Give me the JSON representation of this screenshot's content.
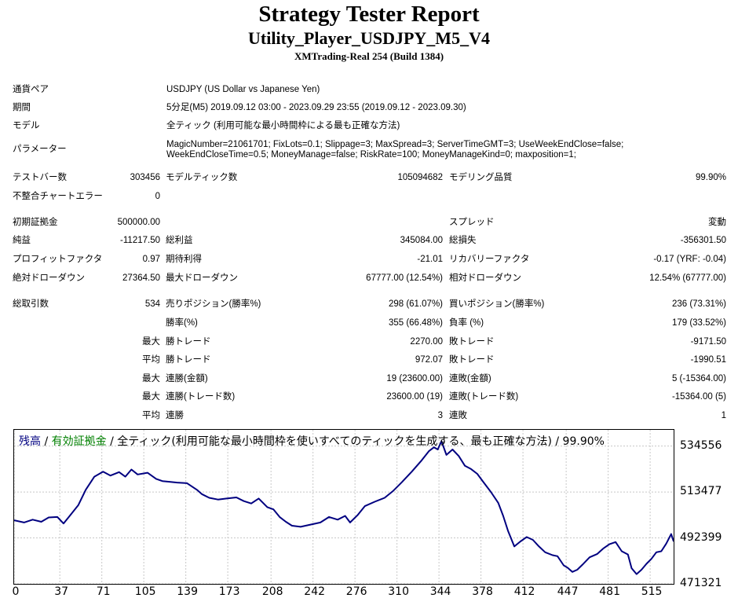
{
  "header": {
    "title": "Strategy Tester Report",
    "subtitle": "Utility_Player_USDJPY_M5_V4",
    "server": "XMTrading-Real 254 (Build 1384)"
  },
  "info": {
    "symbol_label": "通貨ペア",
    "symbol": "USDJPY (US Dollar vs Japanese Yen)",
    "period_label": "期間",
    "period": "5分足(M5) 2019.09.12 03:00 - 2023.09.29 23:55 (2019.09.12 - 2023.09.30)",
    "model_label": "モデル",
    "model": "全ティック (利用可能な最小時間枠による最も正確な方法)",
    "params_label": "パラメーター",
    "params_line1": "MagicNumber=21061701; FixLots=0.1; Slippage=3; MaxSpread=3; ServerTimeGMT=3; UseWeekEndClose=false;",
    "params_line2": "WeekEndCloseTime=0.5; MoneyManage=false; RiskRate=100; MoneyManageKind=0; maxposition=1;"
  },
  "stats": {
    "bars_label": "テストバー数",
    "bars": "303456",
    "ticks_label": "モデルティック数",
    "ticks": "105094682",
    "quality_label": "モデリング品質",
    "quality": "99.90%",
    "mismatch_label": "不整合チャートエラー",
    "mismatch": "0",
    "deposit_label": "初期証拠金",
    "deposit": "500000.00",
    "spread_label": "スプレッド",
    "spread": "変動",
    "net_label": "純益",
    "net": "-11217.50",
    "gross_profit_label": "総利益",
    "gross_profit": "345084.00",
    "gross_loss_label": "総損失",
    "gross_loss": "-356301.50",
    "pf_label": "プロフィットファクタ",
    "pf": "0.97",
    "expected_label": "期待利得",
    "expected": "-21.01",
    "recovery_label": "リカバリーファクタ",
    "recovery": "-0.17 (YRF: -0.04)",
    "abs_dd_label": "絶対ドローダウン",
    "abs_dd": "27364.50",
    "max_dd_label": "最大ドローダウン",
    "max_dd": "67777.00 (12.54%)",
    "rel_dd_label": "相対ドローダウン",
    "rel_dd": "12.54% (67777.00)",
    "trades_label": "総取引数",
    "trades": "534",
    "short_label": "売りポジション(勝率%)",
    "short": "298 (61.07%)",
    "long_label": "買いポジション(勝率%)",
    "long": "236 (73.31%)",
    "winrate_label": "勝率(%)",
    "winrate": "355 (66.48%)",
    "lossrate_label": "負率 (%)",
    "lossrate": "179 (33.52%)",
    "largest_prefix": "最大",
    "largest_win_label": "勝トレード",
    "largest_win": "2270.00",
    "largest_loss_label": "敗トレード",
    "largest_loss": "-9171.50",
    "average_prefix": "平均",
    "avg_win_label": "勝トレード",
    "avg_win": "972.07",
    "avg_loss_label": "敗トレード",
    "avg_loss": "-1990.51",
    "max_prefix": "最大",
    "max_cons_wins_label": "連勝(金額)",
    "max_cons_wins": "19 (23600.00)",
    "max_cons_losses_label": "連敗(金額)",
    "max_cons_losses": "5 (-15364.00)",
    "max2_prefix": "最大",
    "max_cons_profit_label": "連勝(トレード数)",
    "max_cons_profit": "23600.00 (19)",
    "max_cons_loss_label": "連敗(トレード数)",
    "max_cons_loss": "-15364.00 (5)",
    "avg2_prefix": "平均",
    "avg_cons_wins_label": "連勝",
    "avg_cons_wins": "3",
    "avg_cons_losses_label": "連敗",
    "avg_cons_losses": "1"
  },
  "chart_caption": {
    "balance": "残高",
    "sep1": " / ",
    "equity": "有効証拠金",
    "rest": " / 全ティック(利用可能な最小時間枠を使いすべてのティックを生成する、最も正確な方法) / 99.90%"
  },
  "chart_data": {
    "type": "line",
    "xlim": [
      0,
      534
    ],
    "ylim": [
      471321,
      542000
    ],
    "yticks": [
      534556,
      513477,
      492399,
      471321
    ],
    "xticks": [
      0,
      37,
      71,
      105,
      139,
      173,
      208,
      242,
      276,
      310,
      344,
      378,
      412,
      447,
      481,
      515
    ],
    "grid": true,
    "colors": {
      "balance": "#000080",
      "equity": "#008000"
    },
    "series": [
      {
        "name": "残高",
        "points": [
          [
            0,
            500500
          ],
          [
            8,
            499500
          ],
          [
            15,
            500800
          ],
          [
            22,
            499800
          ],
          [
            28,
            501800
          ],
          [
            35,
            502000
          ],
          [
            40,
            499000
          ],
          [
            45,
            502500
          ],
          [
            52,
            507500
          ],
          [
            58,
            514500
          ],
          [
            65,
            520500
          ],
          [
            72,
            522800
          ],
          [
            78,
            521000
          ],
          [
            85,
            522600
          ],
          [
            90,
            520500
          ],
          [
            95,
            523800
          ],
          [
            100,
            521500
          ],
          [
            108,
            522300
          ],
          [
            115,
            519500
          ],
          [
            120,
            518500
          ],
          [
            125,
            518200
          ],
          [
            132,
            517800
          ],
          [
            140,
            517500
          ],
          [
            148,
            514500
          ],
          [
            152,
            512500
          ],
          [
            158,
            510800
          ],
          [
            165,
            510000
          ],
          [
            172,
            510500
          ],
          [
            180,
            511000
          ],
          [
            186,
            509300
          ],
          [
            192,
            508200
          ],
          [
            198,
            510500
          ],
          [
            205,
            506500
          ],
          [
            210,
            505500
          ],
          [
            215,
            502000
          ],
          [
            220,
            499800
          ],
          [
            225,
            498000
          ],
          [
            232,
            497500
          ],
          [
            240,
            498500
          ],
          [
            248,
            499500
          ],
          [
            255,
            502000
          ],
          [
            262,
            500800
          ],
          [
            268,
            502500
          ],
          [
            272,
            499500
          ],
          [
            278,
            502800
          ],
          [
            284,
            507000
          ],
          [
            292,
            509000
          ],
          [
            300,
            510800
          ],
          [
            307,
            514000
          ],
          [
            314,
            518000
          ],
          [
            322,
            522800
          ],
          [
            330,
            528000
          ],
          [
            336,
            532300
          ],
          [
            340,
            534000
          ],
          [
            343,
            533000
          ],
          [
            346,
            536800
          ],
          [
            350,
            530500
          ],
          [
            355,
            533000
          ],
          [
            360,
            530000
          ],
          [
            365,
            525500
          ],
          [
            370,
            524000
          ],
          [
            375,
            521800
          ],
          [
            380,
            518000
          ],
          [
            386,
            513500
          ],
          [
            392,
            508500
          ],
          [
            396,
            502500
          ],
          [
            400,
            495500
          ],
          [
            405,
            488500
          ],
          [
            410,
            490800
          ],
          [
            415,
            492800
          ],
          [
            420,
            491500
          ],
          [
            425,
            488500
          ],
          [
            430,
            485800
          ],
          [
            436,
            484500
          ],
          [
            440,
            484000
          ],
          [
            445,
            479800
          ],
          [
            448,
            478800
          ],
          [
            452,
            476800
          ],
          [
            456,
            477800
          ],
          [
            460,
            480000
          ],
          [
            466,
            483500
          ],
          [
            472,
            485000
          ],
          [
            477,
            487500
          ],
          [
            482,
            489500
          ],
          [
            487,
            490500
          ],
          [
            492,
            486300
          ],
          [
            497,
            484800
          ],
          [
            500,
            478500
          ],
          [
            504,
            475800
          ],
          [
            508,
            477800
          ],
          [
            512,
            480500
          ],
          [
            516,
            482800
          ],
          [
            520,
            485800
          ],
          [
            524,
            486300
          ],
          [
            528,
            489800
          ],
          [
            532,
            494200
          ],
          [
            534,
            490800
          ]
        ]
      }
    ]
  }
}
